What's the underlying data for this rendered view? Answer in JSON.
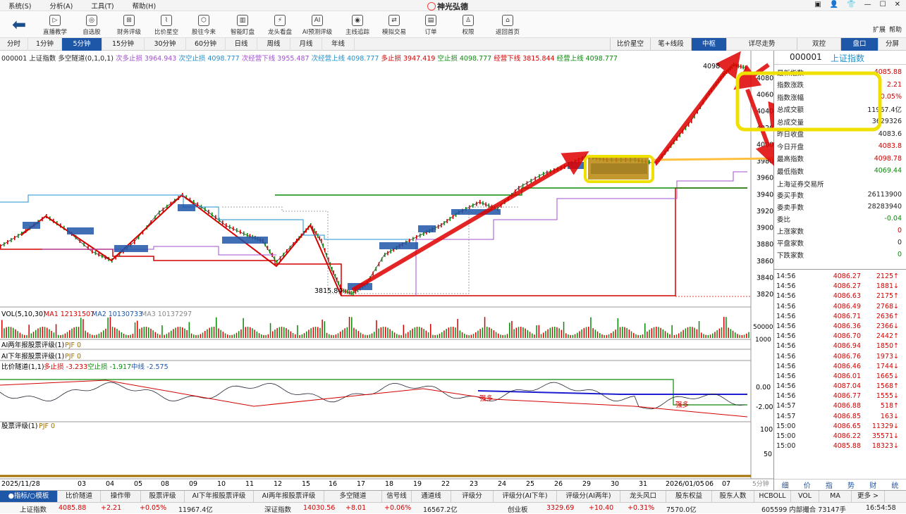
{
  "menu": {
    "items": [
      "系统(S)",
      "分析(A)",
      "工具(T)",
      "帮助(H)"
    ],
    "brand": "神光弘德",
    "window_controls": [
      "▣",
      "👤",
      "👕",
      "—",
      "☐",
      "✕"
    ]
  },
  "toolbar": {
    "buttons": [
      {
        "label": "直播教学",
        "icon": "▷"
      },
      {
        "label": "自选股",
        "icon": "◎"
      },
      {
        "label": "财务评级",
        "icon": "⊞"
      },
      {
        "label": "比价星空",
        "icon": "⌇"
      },
      {
        "label": "股往今来",
        "icon": "⬡"
      },
      {
        "label": "智能盯盘",
        "icon": "▥"
      },
      {
        "label": "龙头看盘",
        "icon": "⚡"
      },
      {
        "label": "AI预测评级",
        "icon": "AI"
      },
      {
        "label": "主线追踪",
        "icon": "◉"
      },
      {
        "label": "模拟交易",
        "icon": "⇄"
      },
      {
        "label": "订单",
        "icon": "▤"
      },
      {
        "label": "权限",
        "icon": "♙"
      },
      {
        "label": "返回首页",
        "icon": "⌂"
      }
    ],
    "right": [
      "扩展",
      "帮助"
    ]
  },
  "periods": [
    "分时",
    "1分钟",
    "5分钟",
    "15分钟",
    "30分钟",
    "60分钟",
    "日线",
    "周线",
    "月线",
    "年线"
  ],
  "active_period": "5分钟",
  "right_tabs": [
    "比价星空",
    "笔+线段",
    "中枢",
    "详尽走势",
    "双控",
    "盘口",
    "分屏"
  ],
  "info_line": {
    "code": "000001 上证指数",
    "indicator": "多空隧道(0,1,0,1)",
    "items": [
      {
        "label": "次多止损",
        "value": "3964.943",
        "color": "#a050d0"
      },
      {
        "label": "次空止损",
        "value": "4098.777",
        "color": "#1e90d0"
      },
      {
        "label": "次经营下线",
        "value": "3955.487",
        "color": "#a050d0"
      },
      {
        "label": "次经营上线",
        "value": "4098.777",
        "color": "#1e90d0"
      },
      {
        "label": "多止损",
        "value": "3947.419",
        "color": "#d40000"
      },
      {
        "label": "空止损",
        "value": "4098.777",
        "color": "#0a8a0a"
      },
      {
        "label": "经营下线",
        "value": "3815.844",
        "color": "#d40000"
      },
      {
        "label": "经营上线",
        "value": "4098.777",
        "color": "#0a8a0a"
      }
    ]
  },
  "main_chart": {
    "y_ticks": [
      "4080",
      "4060",
      "4040",
      "4020",
      "4000",
      "3980",
      "3960",
      "3940",
      "3920",
      "3900",
      "3880",
      "3860",
      "3840",
      "3820"
    ],
    "high_label": "4098",
    "low_label": "3815.84"
  },
  "vol_panel": {
    "label": "VOL(5,10,30)",
    "ma1": "MA1 12131507",
    "ma2": "MA2 10130733",
    "ma3": "MA3 10137297",
    "y_ticks": [
      "50000",
      "1000"
    ],
    "unit": "参"
  },
  "ai_panels": [
    {
      "label": "AI两年报股票评级(1)",
      "value": "PJF 0"
    },
    {
      "label": "AI下年报股票评级(1)",
      "value": "PJF 0"
    }
  ],
  "ratio_panel": {
    "label": "比价隧道(1,1)",
    "items": [
      {
        "label": "多止损",
        "value": "-3.233",
        "color": "#d40000"
      },
      {
        "label": "空止损",
        "value": "-1.917",
        "color": "#0a8a0a"
      },
      {
        "label": "中线",
        "value": "-2.575",
        "color": "#1e56a8"
      }
    ],
    "y_ticks": [
      "0.00",
      "-2.00"
    ],
    "annotations": [
      "强多",
      "强多"
    ]
  },
  "rating_panel": {
    "label": "股票评级(1)",
    "value": "PJF 0",
    "y_ticks": [
      "100",
      "50"
    ]
  },
  "x_axis": [
    "2025/11/28",
    "03",
    "04",
    "05",
    "08",
    "09",
    "10",
    "11",
    "12",
    "15",
    "16",
    "17",
    "18",
    "19",
    "22",
    "23",
    "24",
    "25",
    "26",
    "29",
    "30",
    "31",
    "2026/01/05",
    "06",
    "07"
  ],
  "x_axis_unit": "5分钟",
  "quote": {
    "code": "000001",
    "name": "上证指数",
    "rows": [
      {
        "label": "最新指数",
        "value": "4085.88",
        "color": "#d40000"
      },
      {
        "label": "指数涨跌",
        "value": "2.21",
        "color": "#d40000"
      },
      {
        "label": "指数涨幅",
        "value": "0.05%",
        "color": "#d40000"
      },
      {
        "label": "总成交额",
        "value": "11967.4亿",
        "color": "#222"
      },
      {
        "label": "总成交量",
        "value": "3629326",
        "color": "#222"
      },
      {
        "label": "昨日收盘",
        "value": "4083.6",
        "color": "#222"
      },
      {
        "label": "今日开盘",
        "value": "4083.8",
        "color": "#d40000"
      },
      {
        "label": "最高指数",
        "value": "4098.78",
        "color": "#d40000"
      },
      {
        "label": "最低指数",
        "value": "4069.44",
        "color": "#0a8a0a"
      }
    ],
    "exchange": "上海证券交易所",
    "rows2": [
      {
        "label": "委买手数",
        "value": "26113900",
        "color": "#222"
      },
      {
        "label": "委卖手数",
        "value": "28283940",
        "color": "#222"
      },
      {
        "label": "委比",
        "value": "-0.04",
        "color": "#0a8a0a"
      },
      {
        "label": "上涨家数",
        "value": "0",
        "color": "#d40000"
      },
      {
        "label": "平盘家数",
        "value": "0",
        "color": "#222"
      },
      {
        "label": "下跌家数",
        "value": "0",
        "color": "#0a8a0a"
      }
    ]
  },
  "trades": [
    [
      "14:56",
      "4086.27",
      "2125↑"
    ],
    [
      "14:56",
      "4086.27",
      "1881↓"
    ],
    [
      "14:56",
      "4086.63",
      "2175↑"
    ],
    [
      "14:56",
      "4086.49",
      "2768↓"
    ],
    [
      "14:56",
      "4086.71",
      "2636↑"
    ],
    [
      "14:56",
      "4086.36",
      "2366↓"
    ],
    [
      "14:56",
      "4086.70",
      "2442↑"
    ],
    [
      "14:56",
      "4086.94",
      "1850↑"
    ],
    [
      "14:56",
      "4086.76",
      "1973↓"
    ],
    [
      "14:56",
      "4086.46",
      "1744↓"
    ],
    [
      "14:56",
      "4086.01",
      "1665↓"
    ],
    [
      "14:56",
      "4087.04",
      "1568↑"
    ],
    [
      "14:56",
      "4086.77",
      "1555↓"
    ],
    [
      "14:57",
      "4086.88",
      "518↑"
    ],
    [
      "14:57",
      "4086.85",
      "163↓"
    ],
    [
      "15:00",
      "4086.65",
      "11329↓"
    ],
    [
      "15:00",
      "4086.22",
      "35571↓"
    ],
    [
      "15:00",
      "4085.88",
      "18323↓"
    ]
  ],
  "side_tabs": [
    "细",
    "价",
    "指",
    "势",
    "财",
    "统"
  ],
  "bottom_tabs": [
    "●指标/○模板",
    "比价隧道",
    "操作带",
    "股票评级",
    "AI下年报股票评级",
    "AI两年报股票评级",
    "多空隧道",
    "信号线",
    "通道线",
    "评级分",
    "评级分(AI下年)",
    "评级分(AI两年)",
    "龙头风口",
    "股东权益",
    "股东人数",
    "HCBOLL",
    "VOL",
    "MA",
    "更多 >"
  ],
  "status": {
    "items": [
      {
        "label": "上证指数",
        "value": "4085.88",
        "chg": "+2.21",
        "pct": "+0.05%",
        "amt": "11967.4亿"
      },
      {
        "label": "深证指数",
        "value": "14030.56",
        "chg": "+8.01",
        "pct": "+0.06%",
        "amt": "16567.2亿"
      },
      {
        "label": "创业板",
        "value": "3329.69",
        "chg": "+10.40",
        "pct": "+0.31%",
        "amt": "7570.0亿"
      }
    ],
    "right": "605599 内部撮合 73147手",
    "time": "16:54:58"
  },
  "colors": {
    "up": "#d40000",
    "down": "#0a8a0a",
    "accent": "#1e56a8",
    "highlight": "#f0e000"
  }
}
